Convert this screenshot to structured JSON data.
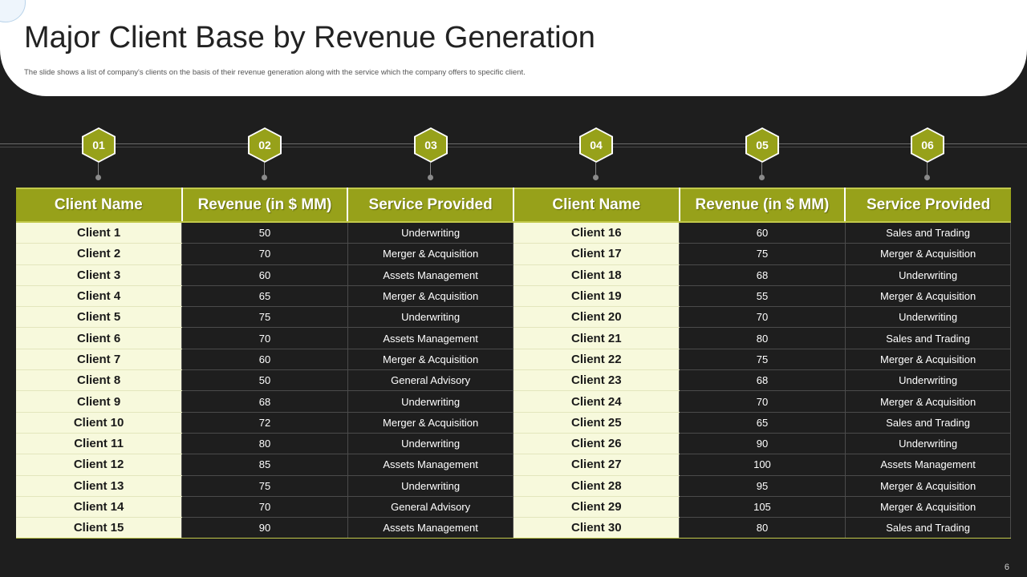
{
  "header": {
    "title": "Major Client Base by Revenue Generation",
    "subtitle": "The slide shows a list of company's clients on the basis of their revenue generation along with the service which the company offers to specific client."
  },
  "markers": [
    "01",
    "02",
    "03",
    "04",
    "05",
    "06"
  ],
  "table": {
    "columns": [
      "Client Name",
      "Revenue (in $ MM)",
      "Service Provided",
      "Client Name",
      "Revenue (in $ MM)",
      "Service Provided"
    ],
    "rows": [
      [
        "Client 1",
        "50",
        "Underwriting",
        "Client 16",
        "60",
        "Sales and Trading"
      ],
      [
        "Client 2",
        "70",
        "Merger  & Acquisition",
        "Client 17",
        "75",
        "Merger  & Acquisition"
      ],
      [
        "Client 3",
        "60",
        "Assets Management",
        "Client 18",
        "68",
        "Underwriting"
      ],
      [
        "Client 4",
        "65",
        "Merger  & Acquisition",
        "Client 19",
        "55",
        "Merger  & Acquisition"
      ],
      [
        "Client 5",
        "75",
        "Underwriting",
        "Client 20",
        "70",
        "Underwriting"
      ],
      [
        "Client 6",
        "70",
        "Assets Management",
        "Client 21",
        "80",
        "Sales and Trading"
      ],
      [
        "Client 7",
        "60",
        "Merger  & Acquisition",
        "Client 22",
        "75",
        "Merger  & Acquisition"
      ],
      [
        "Client 8",
        "50",
        "General  Advisory",
        "Client 23",
        "68",
        "Underwriting"
      ],
      [
        "Client 9",
        "68",
        "Underwriting",
        "Client 24",
        "70",
        "Merger  & Acquisition"
      ],
      [
        "Client 10",
        "72",
        "Merger  & Acquisition",
        "Client 25",
        "65",
        "Sales and Trading"
      ],
      [
        "Client 11",
        "80",
        "Underwriting",
        "Client 26",
        "90",
        "Underwriting"
      ],
      [
        "Client 12",
        "85",
        "Assets Management",
        "Client 27",
        "100",
        "Assets Management"
      ],
      [
        "Client 13",
        "75",
        "Underwriting",
        "Client 28",
        "95",
        "Merger  & Acquisition"
      ],
      [
        "Client 14",
        "70",
        "General  Advisory",
        "Client 29",
        "105",
        "Merger  & Acquisition"
      ],
      [
        "Client 15",
        "90",
        "Assets Management",
        "Client 30",
        "80",
        "Sales and Trading"
      ]
    ]
  },
  "footer": {
    "page_number": "6"
  },
  "colors": {
    "accent": "#97a11a",
    "name_cell": "#f7f9dc",
    "background": "#1e1e1e"
  }
}
